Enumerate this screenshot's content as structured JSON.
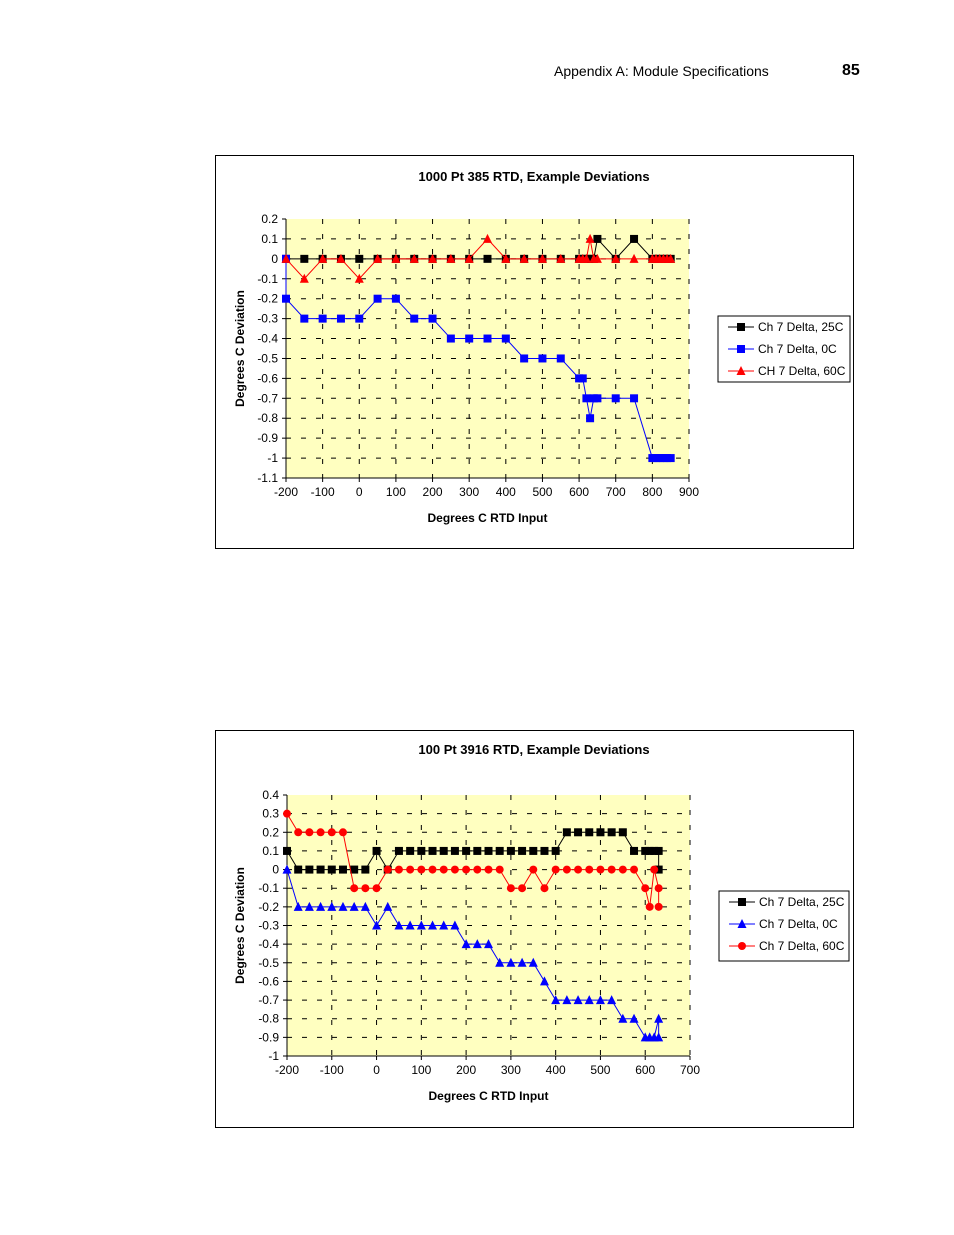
{
  "header": {
    "section": "Appendix A: Module Specifications",
    "page_number": "85"
  },
  "chart_data": [
    {
      "type": "line",
      "title": "1000     Pt 385 RTD, Example Deviations",
      "xlabel": "Degrees C RTD Input",
      "ylabel": "Degrees C Deviation",
      "xlim": [
        -200,
        900
      ],
      "ylim": [
        -1.1,
        0.2
      ],
      "xticks": [
        -200,
        -100,
        0,
        100,
        200,
        300,
        400,
        500,
        600,
        700,
        800,
        900
      ],
      "yticks": [
        0.2,
        0.1,
        0,
        -0.1,
        -0.2,
        -0.3,
        -0.4,
        -0.5,
        -0.6,
        -0.7,
        -0.8,
        -0.9,
        -1,
        -1.1
      ],
      "ytick_labels": [
        "0.2",
        "0.1",
        "0",
        "-0.1",
        "-0.2",
        "-0.3",
        "-0.4",
        "-0.5",
        "-0.6",
        "-0.7",
        "-0.8",
        "-0.9",
        "-1",
        "-1.1"
      ],
      "plot_background": "#ffffc0",
      "grid": "dashed",
      "legend_position": "right",
      "series": [
        {
          "name": "Ch 7 Delta, 25C",
          "color": "#000000",
          "marker": "square",
          "x": [
            -200,
            -150,
            -100,
            -50,
            0,
            50,
            100,
            150,
            200,
            250,
            300,
            350,
            400,
            450,
            500,
            550,
            600,
            610,
            620,
            630,
            640,
            650,
            700,
            750,
            800,
            810,
            820,
            830,
            840,
            850
          ],
          "y": [
            0,
            0,
            0,
            0,
            0,
            0,
            0,
            0,
            0,
            0,
            0,
            0,
            0,
            0,
            0,
            0,
            0,
            0,
            0,
            0,
            0,
            0.1,
            0,
            0.1,
            0,
            0,
            0,
            0,
            0,
            0
          ]
        },
        {
          "name": "Ch 7 Delta, 0C",
          "color": "#0000ff",
          "marker": "square",
          "x": [
            -200,
            -200,
            -150,
            -100,
            -50,
            0,
            50,
            100,
            150,
            200,
            250,
            300,
            350,
            400,
            450,
            500,
            550,
            600,
            610,
            620,
            630,
            640,
            650,
            700,
            750,
            800,
            810,
            820,
            830,
            840,
            850
          ],
          "y": [
            0,
            -0.2,
            -0.3,
            -0.3,
            -0.3,
            -0.3,
            -0.2,
            -0.2,
            -0.3,
            -0.3,
            -0.4,
            -0.4,
            -0.4,
            -0.4,
            -0.5,
            -0.5,
            -0.5,
            -0.6,
            -0.6,
            -0.7,
            -0.8,
            -0.7,
            -0.7,
            -0.7,
            -0.7,
            -1,
            -1,
            -1,
            -1,
            -1,
            -1
          ]
        },
        {
          "name": "CH 7 Delta, 60C",
          "color": "#ff0000",
          "marker": "triangle",
          "x": [
            -200,
            -150,
            -100,
            -50,
            0,
            50,
            100,
            150,
            200,
            250,
            300,
            350,
            400,
            450,
            500,
            550,
            600,
            610,
            620,
            630,
            640,
            650,
            700,
            750,
            800,
            810,
            820,
            830,
            840,
            850
          ],
          "y": [
            0,
            -0.1,
            0,
            0,
            -0.1,
            0,
            0,
            0,
            0,
            0,
            0,
            0.1,
            0,
            0,
            0,
            0,
            0,
            0,
            0,
            0.1,
            0,
            0,
            0,
            0,
            0,
            0,
            0,
            0,
            0,
            0
          ]
        }
      ]
    },
    {
      "type": "line",
      "title": "100     Pt 3916 RTD, Example Deviations",
      "xlabel": "Degrees C RTD Input",
      "ylabel": "Degrees C Deviation",
      "xlim": [
        -200,
        700
      ],
      "ylim": [
        -1,
        0.4
      ],
      "xticks": [
        -200,
        -100,
        0,
        100,
        200,
        300,
        400,
        500,
        600,
        700
      ],
      "yticks": [
        0.4,
        0.3,
        0.2,
        0.1,
        0,
        -0.1,
        -0.2,
        -0.3,
        -0.4,
        -0.5,
        -0.6,
        -0.7,
        -0.8,
        -0.9,
        -1
      ],
      "ytick_labels": [
        "0.4",
        "0.3",
        "0.2",
        "0.1",
        "0",
        "-0.1",
        "-0.2",
        "-0.3",
        "-0.4",
        "-0.5",
        "-0.6",
        "-0.7",
        "-0.8",
        "-0.9",
        "-1"
      ],
      "plot_background": "#ffffc0",
      "grid": "dashed",
      "legend_position": "right",
      "series": [
        {
          "name": "Ch 7 Delta, 25C",
          "color": "#000000",
          "marker": "square",
          "x": [
            -200,
            -175,
            -150,
            -125,
            -100,
            -75,
            -50,
            -25,
            0,
            25,
            50,
            75,
            100,
            125,
            150,
            175,
            200,
            225,
            250,
            275,
            300,
            325,
            350,
            375,
            400,
            425,
            450,
            475,
            500,
            525,
            550,
            575,
            600,
            610,
            620,
            630,
            630
          ],
          "y": [
            0.1,
            0,
            0,
            0,
            0,
            0,
            0,
            0,
            0.1,
            0,
            0.1,
            0.1,
            0.1,
            0.1,
            0.1,
            0.1,
            0.1,
            0.1,
            0.1,
            0.1,
            0.1,
            0.1,
            0.1,
            0.1,
            0.1,
            0.2,
            0.2,
            0.2,
            0.2,
            0.2,
            0.2,
            0.1,
            0.1,
            0.1,
            0.1,
            0.1,
            0
          ]
        },
        {
          "name": "Ch 7 Delta, 0C",
          "color": "#0000ff",
          "marker": "triangle",
          "x": [
            -200,
            -175,
            -150,
            -125,
            -100,
            -75,
            -50,
            -25,
            0,
            25,
            50,
            75,
            100,
            125,
            150,
            175,
            200,
            225,
            250,
            275,
            300,
            325,
            350,
            375,
            400,
            425,
            450,
            475,
            500,
            525,
            550,
            575,
            600,
            610,
            620,
            630,
            630
          ],
          "y": [
            0,
            -0.2,
            -0.2,
            -0.2,
            -0.2,
            -0.2,
            -0.2,
            -0.2,
            -0.3,
            -0.2,
            -0.3,
            -0.3,
            -0.3,
            -0.3,
            -0.3,
            -0.3,
            -0.4,
            -0.4,
            -0.4,
            -0.5,
            -0.5,
            -0.5,
            -0.5,
            -0.6,
            -0.7,
            -0.7,
            -0.7,
            -0.7,
            -0.7,
            -0.7,
            -0.8,
            -0.8,
            -0.9,
            -0.9,
            -0.9,
            -0.8,
            -0.9
          ]
        },
        {
          "name": "Ch 7 Delta, 60C",
          "color": "#ff0000",
          "marker": "circle",
          "x": [
            -200,
            -175,
            -150,
            -125,
            -100,
            -75,
            -50,
            -25,
            0,
            25,
            50,
            75,
            100,
            125,
            150,
            175,
            200,
            225,
            250,
            275,
            300,
            325,
            350,
            375,
            400,
            425,
            450,
            475,
            500,
            525,
            550,
            575,
            600,
            610,
            620,
            630,
            630
          ],
          "y": [
            0.3,
            0.2,
            0.2,
            0.2,
            0.2,
            0.2,
            -0.1,
            -0.1,
            -0.1,
            0,
            0,
            0,
            0,
            0,
            0,
            0,
            0,
            0,
            0,
            0,
            -0.1,
            -0.1,
            0,
            -0.1,
            0,
            0,
            0,
            0,
            0,
            0,
            0,
            0,
            -0.1,
            -0.2,
            0,
            -0.1,
            -0.2
          ]
        }
      ]
    }
  ]
}
